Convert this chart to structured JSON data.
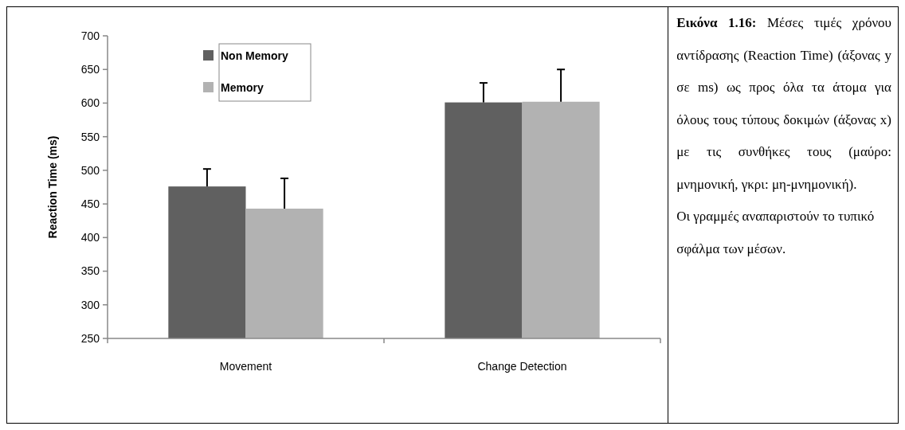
{
  "chart_data": {
    "type": "bar",
    "ylabel": "Reaction Time (ms)",
    "categories": [
      "Movement",
      "Change Detection"
    ],
    "series": [
      {
        "name": "Non Memory",
        "color": "#606060",
        "values": [
          476,
          601
        ],
        "errors": [
          [
            476,
            502
          ],
          [
            601,
            630
          ]
        ]
      },
      {
        "name": "Memory",
        "color": "#b2b2b2",
        "values": [
          443,
          602
        ],
        "errors": [
          [
            443,
            488
          ],
          [
            602,
            650
          ]
        ]
      }
    ],
    "ylim": [
      250,
      700
    ],
    "yticks": [
      250,
      300,
      350,
      400,
      450,
      500,
      550,
      600,
      650,
      700
    ],
    "grid": false,
    "legend": "top left",
    "annotations": [
      "Εικόνα 1.16:",
      "Μέσες τιμές χρόνου αντίδρασης (Reaction Time) (άξονας y σε ms) ως προς όλα τα άτομα για όλους τους τύπους δοκιμών (άξονας x) με τις συνθήκες τους (μαύρο: μνημονική, γκρι: μη-μνημονική).",
      "Οι γραμμές αναπαριστούν το τυπικό σφάλμα των μέσων."
    ]
  }
}
